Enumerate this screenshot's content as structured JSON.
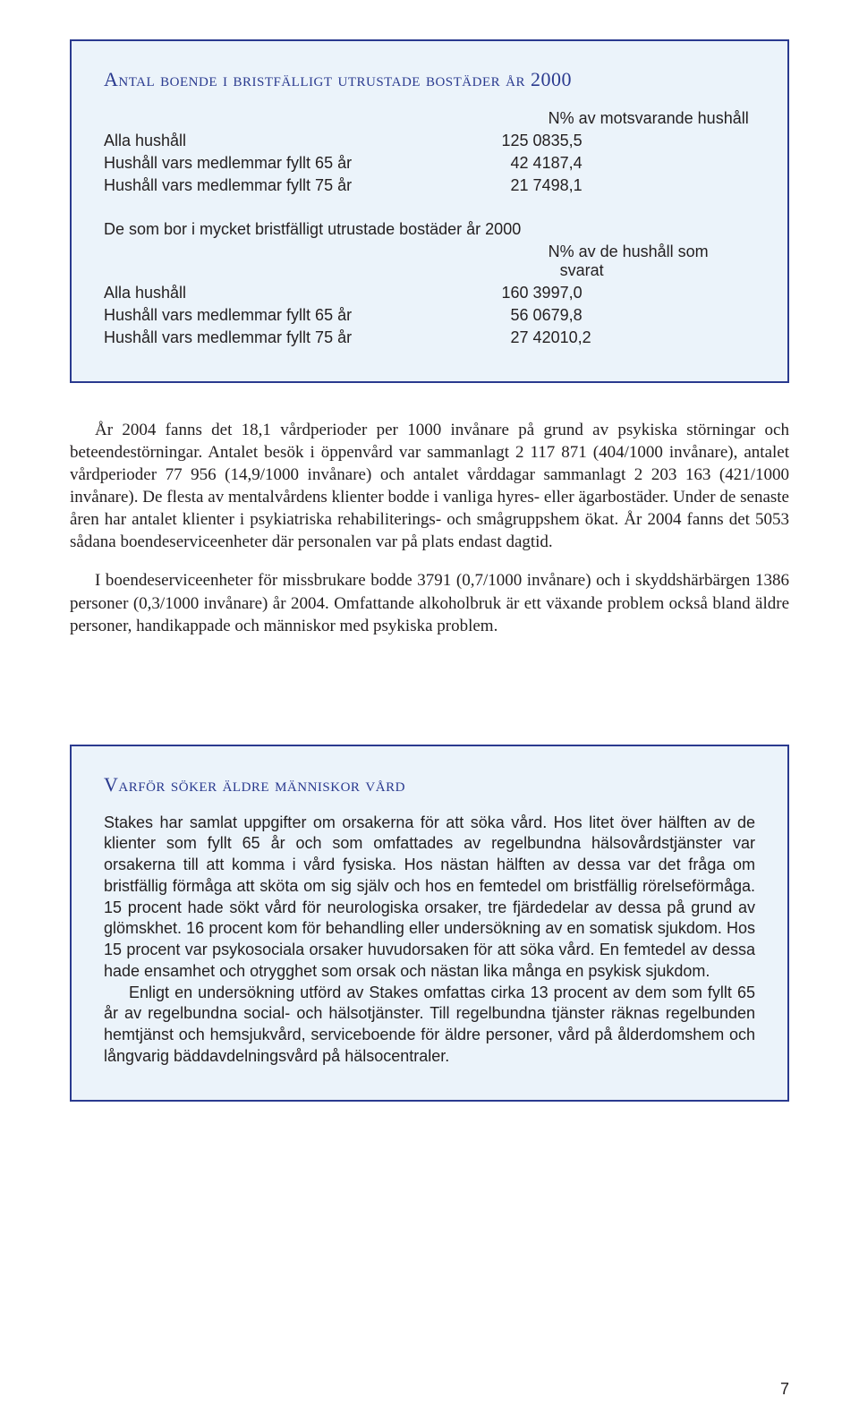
{
  "box1": {
    "title": "Antal boende i bristfälligt utrustade bostäder år 2000",
    "header": {
      "n": "N",
      "pct": "% av motsvarande hushåll"
    },
    "rows1": [
      {
        "label": "Alla hushåll",
        "n": "125 083",
        "pct": "5,5"
      },
      {
        "label": "Hushåll vars medlemmar fyllt 65 år",
        "n": "42 418",
        "pct": "7,4"
      },
      {
        "label": "Hushåll vars medlemmar fyllt 75 år",
        "n": "21 749",
        "pct": "8,1"
      }
    ],
    "subhead": "De som bor i mycket bristfälligt utrustade bostäder år 2000",
    "header2": {
      "n": "N",
      "pct": "% av de hushåll som svarat"
    },
    "rows2": [
      {
        "label": "Alla hushåll",
        "n": "160 399",
        "pct": "7,0"
      },
      {
        "label": "Hushåll vars medlemmar fyllt 65 år",
        "n": "56 067",
        "pct": "9,8"
      },
      {
        "label": "Hushåll vars medlemmar fyllt 75 år",
        "n": "27 420",
        "pct": "10,2"
      }
    ]
  },
  "body": {
    "p1": "År 2004 fanns det 18,1 vårdperioder per 1000 invånare på grund av psykiska störningar och beteendestörningar. Antalet besök i öppenvård var sammanlagt 2 117 871 (404/1000 invånare), antalet vårdperioder 77 956 (14,9/1000 invånare) och antalet vårddagar sammanlagt 2 203 163 (421/1000 invånare). De flesta av mentalvårdens klienter bodde i vanliga hyres- eller ägarbostäder. Under de senaste åren har antalet klienter i psykiatriska rehabiliterings- och smågruppshem ökat. År 2004 fanns det 5053 sådana boendeserviceenheter där personalen var på plats endast dagtid.",
    "p2": "I boendeserviceenheter för missbrukare bodde 3791 (0,7/1000 invånare) och i skyddshärbärgen 1386 personer (0,3/1000 invånare) år 2004. Omfattande alkoholbruk är ett växande problem också bland äldre personer, handikappade och människor med psykiska problem."
  },
  "box2": {
    "title": "Varför söker äldre människor vård",
    "p1": "Stakes har samlat uppgifter om orsakerna för att söka vård. Hos litet över hälften av de klienter som fyllt 65 år och som omfattades av regelbundna hälsovårdstjänster var orsakerna till att komma i vård fysiska. Hos nästan hälften av dessa var det fråga om bristfällig förmåga att sköta om sig själv och hos en femtedel om bristfällig rörelseförmåga. 15 procent hade sökt vård för neurologiska orsaker, tre fjärdedelar av dessa på grund av glömskhet. 16 procent kom för behandling eller undersökning av en somatisk sjukdom. Hos 15 procent var psykosociala orsaker huvudorsaken för att söka vård. En femtedel av dessa hade ensamhet och otrygghet som orsak och nästan lika många en psykisk sjukdom.",
    "p2": "Enligt en undersökning utförd av Stakes omfattas cirka 13 procent av dem som fyllt 65 år av regelbundna social- och hälsotjänster. Till regelbundna tjänster räknas regelbunden hemtjänst och hemsjukvård, serviceboende för äldre personer, vård på ålderdomshem och långvarig bäddavdelningsvård på hälsocentraler."
  },
  "pagenum": "7"
}
